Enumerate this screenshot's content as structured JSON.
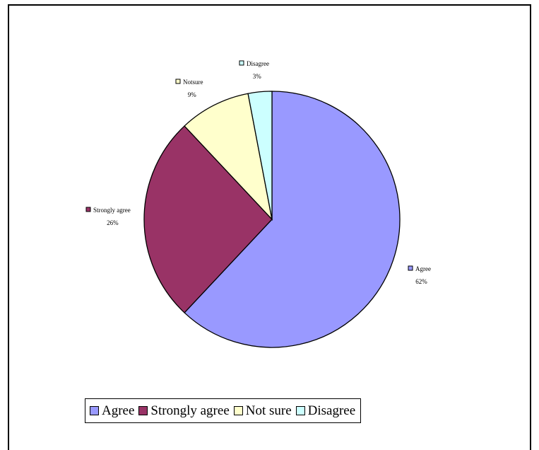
{
  "chart_data": {
    "type": "pie",
    "title": "",
    "series": [
      {
        "name": "Agree",
        "value": 62,
        "label": "Agree",
        "percent_label": "62%",
        "color": "#9999ff"
      },
      {
        "name": "Strongly agree",
        "value": 26,
        "label": "Strongly agree",
        "percent_label": "26%",
        "color": "#993366"
      },
      {
        "name": "Not sure",
        "value": 9,
        "label": "Notsure",
        "percent_label": "9%",
        "color": "#ffffcc"
      },
      {
        "name": "Disagree",
        "value": 3,
        "label": "Disagree",
        "percent_label": "3%",
        "color": "#ccffff"
      }
    ],
    "legend": {
      "placement": "bottom-left",
      "items": [
        "Agree",
        "Strongly agree",
        "Not sure",
        "Disagree"
      ]
    }
  }
}
